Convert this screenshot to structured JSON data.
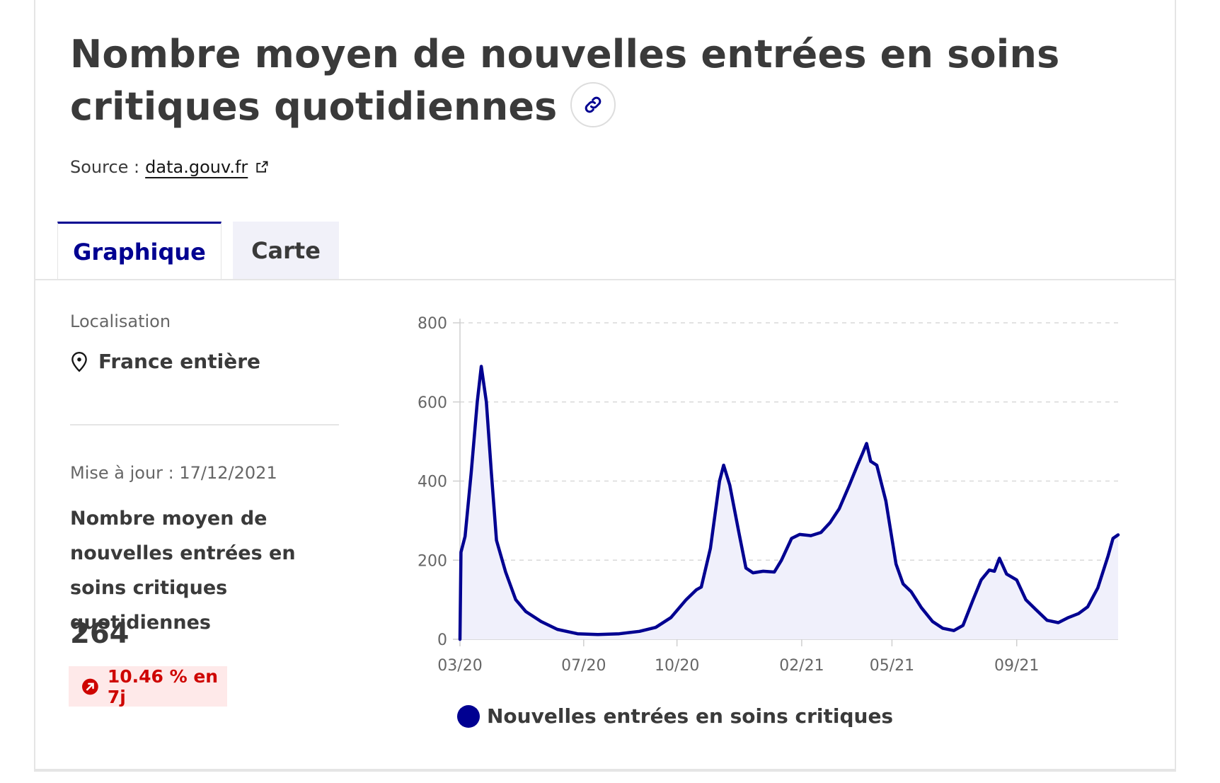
{
  "header": {
    "title": "Nombre moyen de nouvelles entrées en soins critiques quotidiennes",
    "source_label": "Source :",
    "source_link": "data.gouv.fr"
  },
  "tabs": [
    {
      "label": "Graphique",
      "active": true
    },
    {
      "label": "Carte",
      "active": false
    }
  ],
  "sidebar": {
    "location_label": "Localisation",
    "location_value": "France entière",
    "update_label": "Mise à jour : 17/12/2021",
    "indicator_title": "Nombre moyen de nouvelles entrées en soins critiques quotidiennes",
    "indicator_value": "264",
    "trend": "10.46 % en 7j"
  },
  "colors": {
    "accent": "#000091",
    "trend_red": "#ce0500",
    "trend_bg": "#fee9e9"
  },
  "icons": [
    "link-icon",
    "external-link-icon",
    "map-pin-icon",
    "trend-up-icon"
  ],
  "chart_data": {
    "type": "area",
    "title": "",
    "xlabel": "",
    "ylabel": "",
    "ylim": [
      0,
      800
    ],
    "yticks": [
      "0",
      "200",
      "400",
      "600",
      "800"
    ],
    "xticks": [
      {
        "label": "03/20",
        "date": "2020-03-01"
      },
      {
        "label": "07/20",
        "date": "2020-07-01"
      },
      {
        "label": "10/20",
        "date": "2020-10-01"
      },
      {
        "label": "02/21",
        "date": "2021-02-01"
      },
      {
        "label": "05/21",
        "date": "2021-05-01"
      },
      {
        "label": "09/21",
        "date": "2021-09-01"
      }
    ],
    "grid": true,
    "legend_position": "bottom",
    "series": [
      {
        "name": "Nouvelles entrées en soins critiques",
        "color": "#000091",
        "points": [
          [
            "2020-03-01",
            0
          ],
          [
            "2020-03-02",
            220
          ],
          [
            "2020-03-06",
            260
          ],
          [
            "2020-03-12",
            420
          ],
          [
            "2020-03-18",
            600
          ],
          [
            "2020-03-22",
            690
          ],
          [
            "2020-03-27",
            600
          ],
          [
            "2020-04-01",
            420
          ],
          [
            "2020-04-06",
            250
          ],
          [
            "2020-04-15",
            170
          ],
          [
            "2020-04-25",
            100
          ],
          [
            "2020-05-05",
            70
          ],
          [
            "2020-05-20",
            45
          ],
          [
            "2020-06-05",
            25
          ],
          [
            "2020-06-25",
            14
          ],
          [
            "2020-07-15",
            12
          ],
          [
            "2020-08-05",
            14
          ],
          [
            "2020-08-25",
            20
          ],
          [
            "2020-09-10",
            30
          ],
          [
            "2020-09-25",
            55
          ],
          [
            "2020-10-10",
            100
          ],
          [
            "2020-10-20",
            125
          ],
          [
            "2020-10-25",
            132
          ],
          [
            "2020-11-03",
            230
          ],
          [
            "2020-11-12",
            400
          ],
          [
            "2020-11-16",
            440
          ],
          [
            "2020-11-22",
            390
          ],
          [
            "2020-12-01",
            270
          ],
          [
            "2020-12-08",
            180
          ],
          [
            "2020-12-15",
            168
          ],
          [
            "2020-12-25",
            172
          ],
          [
            "2021-01-05",
            170
          ],
          [
            "2021-01-12",
            200
          ],
          [
            "2021-01-22",
            255
          ],
          [
            "2021-01-30",
            265
          ],
          [
            "2021-02-10",
            262
          ],
          [
            "2021-02-20",
            270
          ],
          [
            "2021-03-01",
            295
          ],
          [
            "2021-03-10",
            330
          ],
          [
            "2021-03-20",
            390
          ],
          [
            "2021-03-28",
            440
          ],
          [
            "2021-04-02",
            470
          ],
          [
            "2021-04-06",
            495
          ],
          [
            "2021-04-10",
            450
          ],
          [
            "2021-04-16",
            440
          ],
          [
            "2021-04-25",
            350
          ],
          [
            "2021-05-05",
            190
          ],
          [
            "2021-05-12",
            140
          ],
          [
            "2021-05-20",
            120
          ],
          [
            "2021-05-30",
            80
          ],
          [
            "2021-06-10",
            45
          ],
          [
            "2021-06-20",
            28
          ],
          [
            "2021-07-01",
            22
          ],
          [
            "2021-07-10",
            35
          ],
          [
            "2021-07-20",
            100
          ],
          [
            "2021-07-28",
            150
          ],
          [
            "2021-08-05",
            175
          ],
          [
            "2021-08-10",
            172
          ],
          [
            "2021-08-15",
            205
          ],
          [
            "2021-08-22",
            165
          ],
          [
            "2021-09-01",
            150
          ],
          [
            "2021-09-10",
            100
          ],
          [
            "2021-09-20",
            75
          ],
          [
            "2021-10-01",
            48
          ],
          [
            "2021-10-12",
            42
          ],
          [
            "2021-10-22",
            55
          ],
          [
            "2021-11-01",
            65
          ],
          [
            "2021-11-10",
            82
          ],
          [
            "2021-11-20",
            130
          ],
          [
            "2021-11-30",
            210
          ],
          [
            "2021-12-05",
            255
          ],
          [
            "2021-12-10",
            264
          ]
        ]
      }
    ]
  }
}
